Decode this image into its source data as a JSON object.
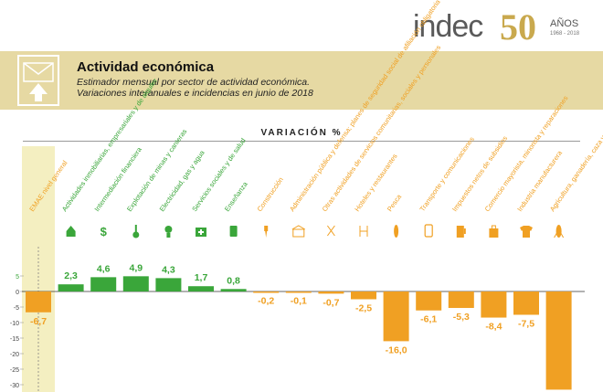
{
  "brand": {
    "logo_text": "indec",
    "logo_number": "50",
    "logo_anos": "AÑOS",
    "logo_years": "1968 - 2018"
  },
  "header": {
    "title": "Actividad económica",
    "subtitle_line1": "Estimador mensual por sector de actividad económica.",
    "subtitle_line2": "Variaciones interanuales e incidencias en junio de 2018"
  },
  "colors": {
    "positive": "#3aa63a",
    "negative": "#f0a023",
    "highlight": "#f4efc1",
    "banner": "#e6d9a3"
  },
  "chart_data": {
    "type": "bar",
    "title": "VARIACIÓN %",
    "categories": [
      "EMAE nivel general",
      "Actividades inmobiliarias, empresariales y de alquiler",
      "Intermediación financiera",
      "Explotación de minas y canteras",
      "Electricidad, gas y agua",
      "Servicios sociales y de salud",
      "Enseñanza",
      "Construcción",
      "Administración pública y defensa; planes de seguridad social de afiliación obligatoria",
      "Otras actividades de servicios comunitarias, sociales y personales",
      "Hoteles y restaurantes",
      "Pesca",
      "Transporte y comunicaciones",
      "Impuestos netos de subsidios",
      "Comercio mayorista, minorista y reparaciones",
      "Industria manufacturera",
      "Agricultura, ganadería, caza y silvicultura"
    ],
    "values": [
      -6.7,
      2.3,
      4.6,
      4.9,
      4.3,
      1.7,
      0.8,
      -0.2,
      -0.1,
      -0.7,
      -2.5,
      -16.0,
      -6.1,
      -5.3,
      -8.4,
      -7.5,
      -31.6
    ],
    "value_labels": [
      "-6,7",
      "2,3",
      "4,6",
      "4,9",
      "4,3",
      "1,7",
      "0,8",
      "-0,2",
      "-0,1",
      "-0,7",
      "-2,5",
      "-16,0",
      "-6,1",
      "-5,3",
      "-8,4",
      "-7,5",
      ""
    ],
    "icons": [
      "",
      "house-icon",
      "dollar-icon",
      "shovel-icon",
      "bulb-icon",
      "medkit-icon",
      "book-icon",
      "drill-icon",
      "building-icon",
      "scissors-icon",
      "door-icon",
      "fish-icon",
      "phone-icon",
      "pump-icon",
      "bag-icon",
      "shirt-icon",
      "corn-icon"
    ],
    "yticks": [
      5,
      0,
      -5,
      -10,
      -15,
      -20,
      -25,
      -30
    ],
    "ytick_labels": [
      "5",
      "0",
      "-5",
      "-10",
      "-15",
      "-20",
      "-25",
      "-30"
    ],
    "ylim": [
      -31.6,
      7
    ],
    "highlight_category": "EMAE nivel general",
    "grid": false,
    "legend": "none"
  }
}
